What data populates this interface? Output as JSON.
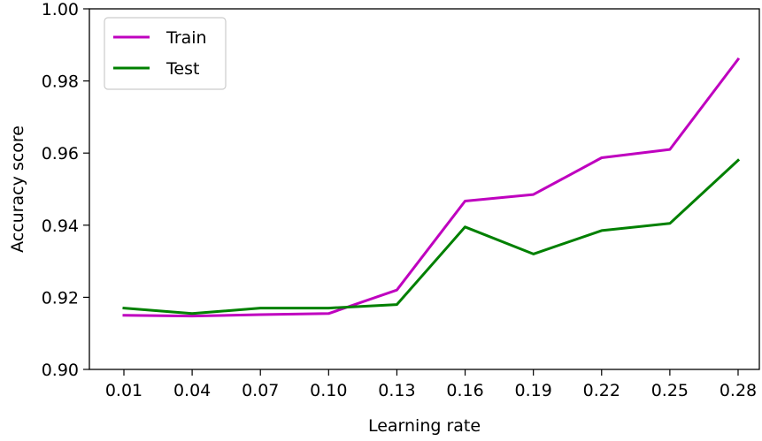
{
  "chart_data": {
    "type": "line",
    "xlabel": "Learning rate",
    "ylabel": "Accuracy score",
    "categories": [
      "0.01",
      "0.04",
      "0.07",
      "0.10",
      "0.13",
      "0.16",
      "0.19",
      "0.22",
      "0.25",
      "0.28"
    ],
    "ylim": [
      0.9,
      1.0
    ],
    "yticks": [
      "0.90",
      "0.92",
      "0.94",
      "0.96",
      "0.98",
      "1.00"
    ],
    "grid": false,
    "legend_position": "top-left",
    "series": [
      {
        "name": "Train",
        "color": "#bf00bf",
        "values": [
          0.915,
          0.9148,
          0.9152,
          0.9155,
          0.922,
          0.9467,
          0.9485,
          0.9587,
          0.961,
          0.986
        ]
      },
      {
        "name": "Test",
        "color": "#008000",
        "values": [
          0.917,
          0.9155,
          0.917,
          0.917,
          0.918,
          0.9395,
          0.932,
          0.9385,
          0.9405,
          0.958
        ]
      }
    ]
  }
}
